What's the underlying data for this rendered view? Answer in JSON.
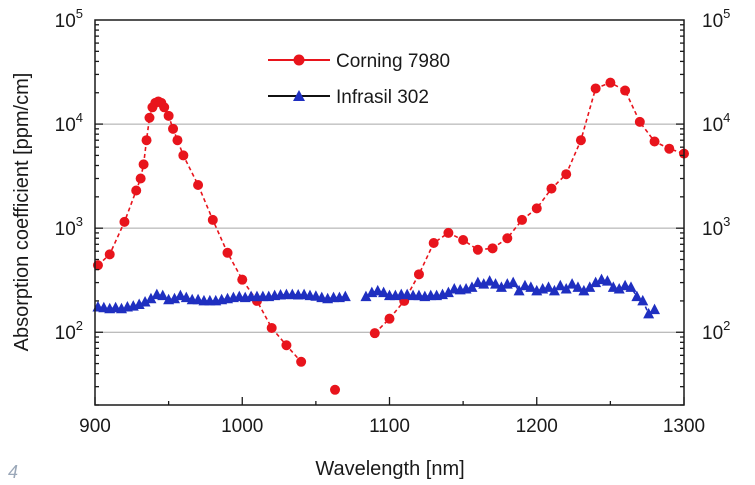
{
  "corner_mark": "4",
  "chart_data": {
    "type": "line",
    "title": "",
    "xlabel": "Wavelength [nm]",
    "ylabel": "Absorption coefficient [ppm/cm]",
    "xlim": [
      900,
      1300
    ],
    "ylim": [
      20,
      100000
    ],
    "yscale": "log",
    "x_ticks": [
      900,
      1000,
      1100,
      1200,
      1300
    ],
    "y_ticks": [
      {
        "value": 100,
        "base": "10",
        "exp": "2"
      },
      {
        "value": 1000,
        "base": "10",
        "exp": "3"
      },
      {
        "value": 10000,
        "base": "10",
        "exp": "4"
      },
      {
        "value": 100000,
        "base": "10",
        "exp": "5"
      }
    ],
    "grid": "horizontal major",
    "legend_position": "top-center",
    "series": [
      {
        "name": "Corning 7980",
        "color": "#e8141c",
        "marker": "circle",
        "line": "dashed",
        "segments": [
          [
            [
              902,
              440
            ],
            [
              910,
              560
            ],
            [
              920,
              1150
            ],
            [
              928,
              2300
            ],
            [
              931,
              3000
            ],
            [
              933,
              4100
            ],
            [
              935,
              7000
            ],
            [
              937,
              11500
            ],
            [
              939,
              14500
            ],
            [
              941,
              16000
            ],
            [
              943,
              16500
            ],
            [
              945,
              16000
            ],
            [
              947,
              14500
            ],
            [
              950,
              12000
            ],
            [
              953,
              9000
            ],
            [
              956,
              7000
            ],
            [
              960,
              5000
            ],
            [
              970,
              2600
            ],
            [
              980,
              1200
            ],
            [
              990,
              580
            ],
            [
              1000,
              320
            ],
            [
              1010,
              200
            ],
            [
              1020,
              110
            ],
            [
              1030,
              75
            ],
            [
              1040,
              52
            ]
          ],
          [
            [
              1063,
              28
            ]
          ],
          [
            [
              1090,
              98
            ],
            [
              1100,
              135
            ],
            [
              1110,
              200
            ],
            [
              1120,
              360
            ],
            [
              1130,
              720
            ],
            [
              1140,
              900
            ],
            [
              1150,
              770
            ],
            [
              1160,
              620
            ],
            [
              1170,
              640
            ],
            [
              1180,
              800
            ],
            [
              1190,
              1200
            ],
            [
              1200,
              1550
            ],
            [
              1210,
              2400
            ],
            [
              1220,
              3300
            ],
            [
              1230,
              7000
            ],
            [
              1240,
              22000
            ],
            [
              1250,
              25000
            ],
            [
              1260,
              21000
            ],
            [
              1270,
              10500
            ],
            [
              1280,
              6800
            ],
            [
              1290,
              5800
            ],
            [
              1300,
              5200
            ]
          ]
        ]
      },
      {
        "name": "Infrasil 302",
        "color": "#1f2fc0",
        "marker": "triangle",
        "line": "dashed",
        "segments": [
          [
            [
              902,
              175
            ],
            [
              906,
              172
            ],
            [
              910,
              168
            ],
            [
              914,
              172
            ],
            [
              918,
              168
            ],
            [
              922,
              175
            ],
            [
              926,
              178
            ],
            [
              930,
              185
            ],
            [
              934,
              195
            ],
            [
              938,
              210
            ],
            [
              942,
              230
            ],
            [
              946,
              225
            ],
            [
              950,
              205
            ],
            [
              954,
              210
            ],
            [
              958,
              225
            ],
            [
              962,
              215
            ],
            [
              966,
              205
            ],
            [
              970,
              205
            ],
            [
              974,
              200
            ],
            [
              978,
              200
            ],
            [
              982,
              200
            ],
            [
              986,
              205
            ],
            [
              990,
              210
            ],
            [
              994,
              215
            ],
            [
              998,
              220
            ],
            [
              1002,
              215
            ],
            [
              1006,
              220
            ],
            [
              1010,
              220
            ],
            [
              1014,
              220
            ],
            [
              1018,
              220
            ],
            [
              1022,
              225
            ],
            [
              1026,
              228
            ],
            [
              1030,
              230
            ],
            [
              1034,
              230
            ],
            [
              1038,
              228
            ],
            [
              1042,
              230
            ],
            [
              1046,
              225
            ],
            [
              1050,
              222
            ],
            [
              1054,
              215
            ],
            [
              1058,
              210
            ],
            [
              1062,
              215
            ],
            [
              1066,
              215
            ],
            [
              1070,
              220
            ]
          ],
          [
            [
              1084,
              220
            ],
            [
              1088,
              240
            ],
            [
              1092,
              250
            ],
            [
              1096,
              240
            ],
            [
              1100,
              225
            ],
            [
              1104,
              225
            ],
            [
              1108,
              230
            ],
            [
              1112,
              230
            ],
            [
              1116,
              225
            ],
            [
              1120,
              225
            ],
            [
              1124,
              220
            ],
            [
              1128,
              225
            ],
            [
              1132,
              225
            ],
            [
              1136,
              230
            ],
            [
              1140,
              240
            ],
            [
              1144,
              260
            ],
            [
              1148,
              255
            ],
            [
              1152,
              260
            ],
            [
              1156,
              270
            ],
            [
              1160,
              300
            ],
            [
              1164,
              290
            ],
            [
              1168,
              310
            ],
            [
              1172,
              290
            ],
            [
              1176,
              270
            ],
            [
              1180,
              290
            ],
            [
              1184,
              300
            ],
            [
              1188,
              250
            ],
            [
              1192,
              280
            ],
            [
              1196,
              270
            ],
            [
              1200,
              250
            ],
            [
              1204,
              260
            ],
            [
              1208,
              270
            ],
            [
              1212,
              250
            ],
            [
              1216,
              280
            ],
            [
              1220,
              260
            ],
            [
              1224,
              290
            ],
            [
              1228,
              270
            ],
            [
              1232,
              250
            ],
            [
              1236,
              270
            ],
            [
              1240,
              300
            ],
            [
              1244,
              320
            ],
            [
              1248,
              310
            ],
            [
              1252,
              270
            ],
            [
              1256,
              260
            ],
            [
              1260,
              280
            ],
            [
              1264,
              270
            ],
            [
              1268,
              220
            ],
            [
              1272,
              200
            ],
            [
              1276,
              150
            ],
            [
              1280,
              165
            ]
          ]
        ]
      }
    ]
  }
}
